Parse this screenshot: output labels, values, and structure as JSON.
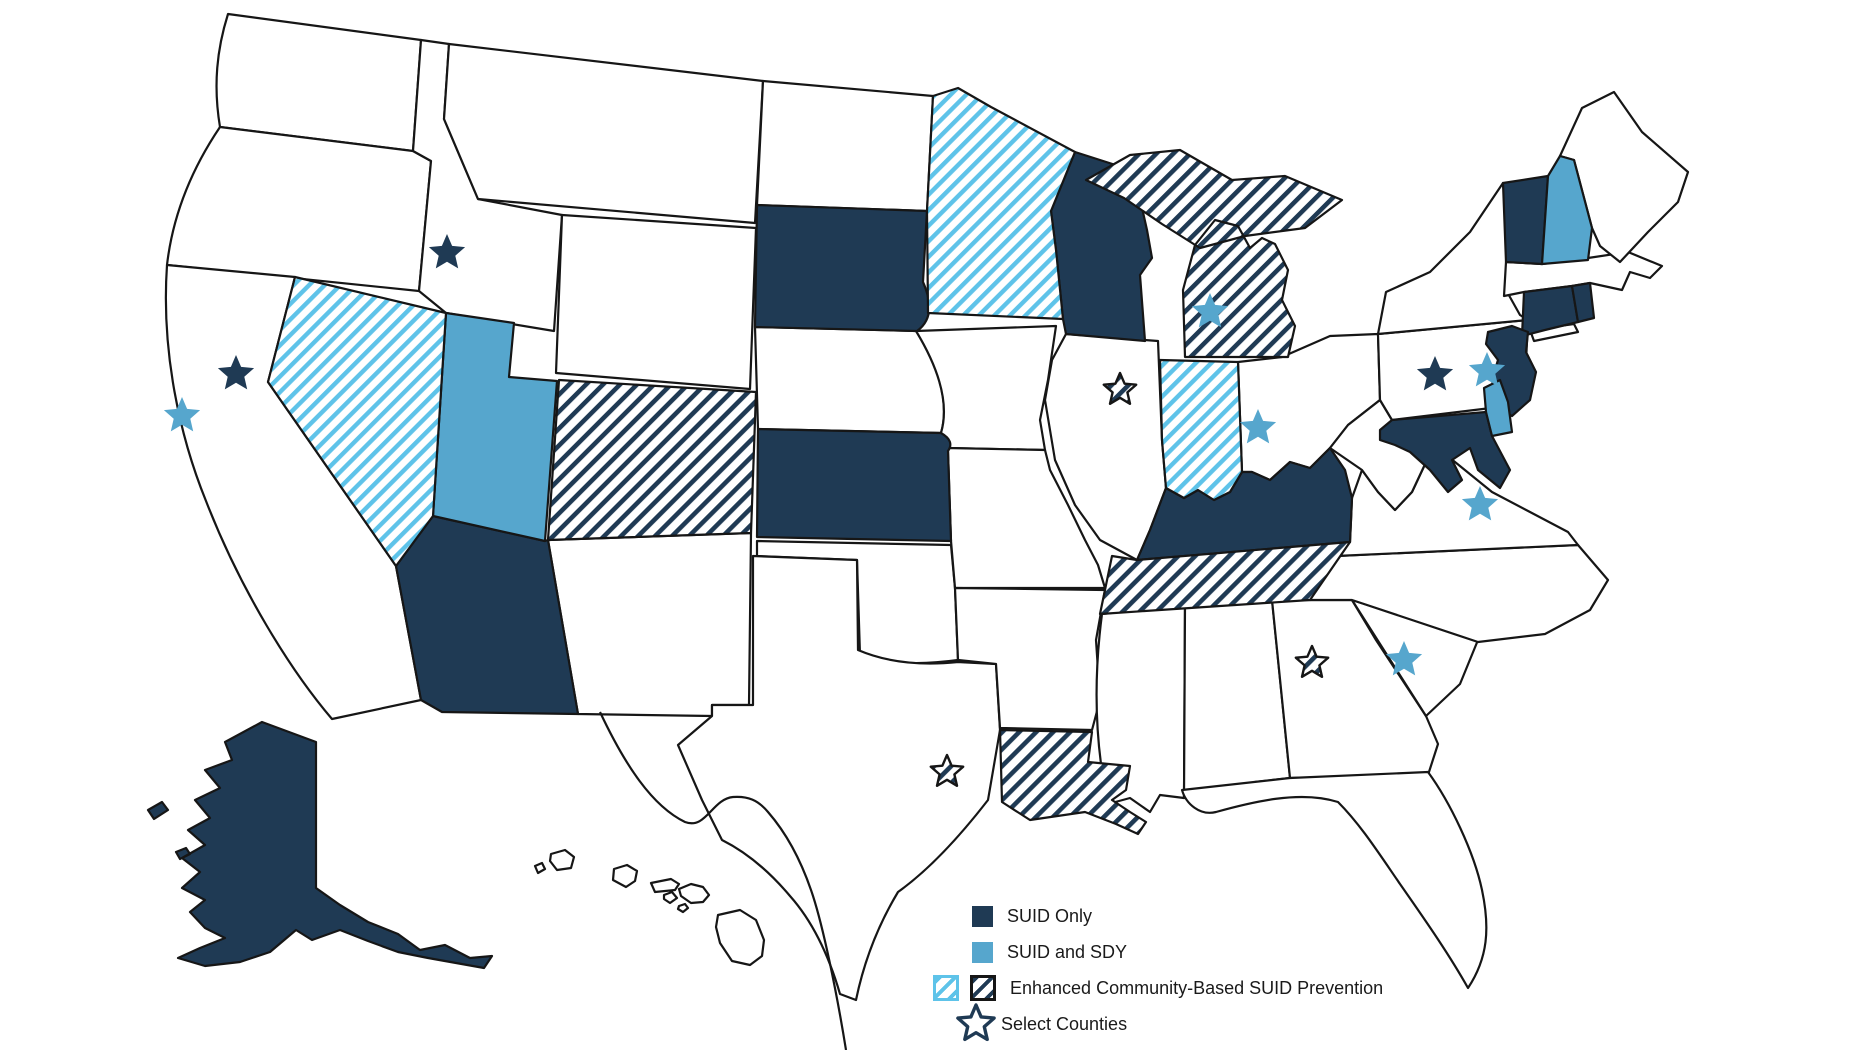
{
  "figure": {
    "background": "#ffffff",
    "border_color": "#161616",
    "colors": {
      "suid_only": "#1f3a54",
      "suid_and_sdy": "#56a6cd",
      "hatch_light_stripe": "#5ec3e9",
      "hatch_dark_stripe": "#1f3a54",
      "unfilled": "#ffffff"
    }
  },
  "legend": {
    "items": [
      {
        "id": "suid-only",
        "label": "SUID Only",
        "style": "solid-dark",
        "color": "#1f3a54"
      },
      {
        "id": "suid-sdy",
        "label": "SUID and SDY",
        "style": "solid-light",
        "color": "#56a6cd"
      },
      {
        "id": "enhanced",
        "label": "Enhanced Community-Based SUID Prevention",
        "style": "hatch-pair",
        "hatch_light_color": "#5ec3e9",
        "hatch_dark_color": "#1f3a54"
      },
      {
        "id": "select-counties",
        "label": "Select Counties",
        "style": "star-outline",
        "color": "#1f3a54"
      }
    ]
  },
  "map": {
    "categories": [
      {
        "id": "suid_only",
        "label": "SUID Only",
        "fill": "solid-dark",
        "states": [
          "AK",
          "AZ",
          "CT",
          "KS",
          "KY",
          "MD",
          "NJ",
          "RI",
          "SD",
          "VT",
          "WI"
        ]
      },
      {
        "id": "suid_and_sdy",
        "label": "SUID and SDY",
        "fill": "solid-light",
        "states": [
          "DE",
          "NH",
          "UT"
        ]
      },
      {
        "id": "enhanced_community_light",
        "label": "Enhanced Community-Based SUID Prevention",
        "fill": "hatch-light",
        "states": [
          "IN",
          "MN",
          "NV"
        ]
      },
      {
        "id": "enhanced_community_dark",
        "label": "Enhanced Community-Based SUID Prevention",
        "fill": "hatch-dark",
        "states": [
          "CO",
          "LA",
          "MI",
          "TN"
        ]
      },
      {
        "id": "not-participating",
        "label": "",
        "fill": "white",
        "states": [
          "WA",
          "OR",
          "CA",
          "ID",
          "MT",
          "WY",
          "NM",
          "ND",
          "NE",
          "OK",
          "TX",
          "IA",
          "MO",
          "AR",
          "IL",
          "OH",
          "MS",
          "AL",
          "GA",
          "FL",
          "SC",
          "NC",
          "VA",
          "WV",
          "PA",
          "NY",
          "MA",
          "ME",
          "HI"
        ]
      }
    ],
    "state_names": {
      "AK": "Alaska",
      "AL": "Alabama",
      "AR": "Arkansas",
      "AZ": "Arizona",
      "CA": "California",
      "CO": "Colorado",
      "CT": "Connecticut",
      "DE": "Delaware",
      "FL": "Florida",
      "GA": "Georgia",
      "HI": "Hawaii",
      "IA": "Iowa",
      "ID": "Idaho",
      "IL": "Illinois",
      "IN": "Indiana",
      "KS": "Kansas",
      "KY": "Kentucky",
      "LA": "Louisiana",
      "MA": "Massachusetts",
      "MD": "Maryland",
      "ME": "Maine",
      "MI": "Michigan",
      "MN": "Minnesota",
      "MO": "Missouri",
      "MS": "Mississippi",
      "MT": "Montana",
      "NC": "North Carolina",
      "ND": "North Dakota",
      "NE": "Nebraska",
      "NH": "New Hampshire",
      "NJ": "New Jersey",
      "NM": "New Mexico",
      "NV": "Nevada",
      "NY": "New York",
      "OH": "Ohio",
      "OK": "Oklahoma",
      "OR": "Oregon",
      "PA": "Pennsylvania",
      "RI": "Rhode Island",
      "SC": "South Carolina",
      "SD": "South Dakota",
      "TN": "Tennessee",
      "TX": "Texas",
      "UT": "Utah",
      "VA": "Virginia",
      "VT": "Vermont",
      "WA": "Washington",
      "WI": "Wisconsin",
      "WV": "West Virginia",
      "WY": "Wyoming"
    },
    "stars": [
      {
        "id": "star-id-dark",
        "state": "ID",
        "style": "dark"
      },
      {
        "id": "star-ca-dark",
        "state": "CA",
        "style": "dark"
      },
      {
        "id": "star-pa-dark",
        "state": "PA",
        "style": "dark"
      },
      {
        "id": "star-ca-light",
        "state": "CA",
        "style": "light"
      },
      {
        "id": "star-mi-light",
        "state": "MI",
        "style": "light"
      },
      {
        "id": "star-oh-light",
        "state": "OH",
        "style": "light"
      },
      {
        "id": "star-pa-light",
        "state": "PA",
        "style": "light"
      },
      {
        "id": "star-va-light",
        "state": "VA",
        "style": "light"
      },
      {
        "id": "star-sc-light",
        "state": "SC",
        "style": "light"
      },
      {
        "id": "star-il-hatch",
        "state": "IL",
        "style": "hatch"
      },
      {
        "id": "star-tx-hatch",
        "state": "TX",
        "style": "hatch"
      },
      {
        "id": "star-ga-hatch",
        "state": "GA",
        "style": "hatch"
      }
    ]
  }
}
